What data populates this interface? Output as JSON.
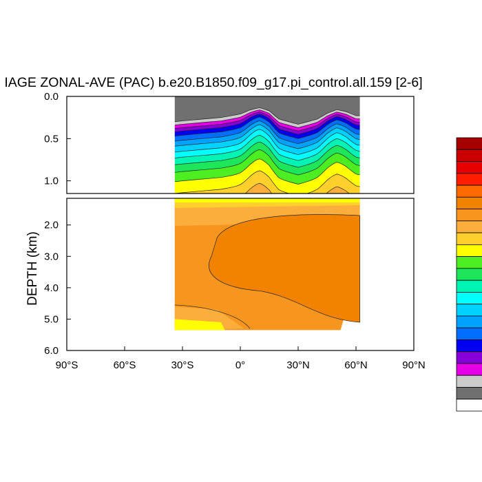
{
  "chart_data": {
    "type": "heatmap",
    "subtype": "filled-contour-section",
    "title": "IAGE ZONAL-AVE (PAC) b.e20.B1850.f09_g17.pi_control.all.159 [2-6]",
    "ylabel": "DEPTH (km)",
    "xlabel": "",
    "x_ticks": [
      "90°S",
      "60°S",
      "30°S",
      "0°",
      "30°N",
      "60°N",
      "90°N"
    ],
    "x_tick_values": [
      -90,
      -60,
      -30,
      0,
      30,
      60,
      90
    ],
    "xlim": [
      -90,
      90
    ],
    "upper_panel": {
      "ylim": [
        0.0,
        1.15
      ],
      "y_ticks": [
        "0.0",
        "0.5",
        "1.0"
      ],
      "y_tick_values": [
        0.0,
        0.5,
        1.0
      ]
    },
    "lower_panel": {
      "ylim": [
        1.15,
        6.0
      ],
      "y_ticks": [
        "2.0",
        "3.0",
        "4.0",
        "5.0",
        "6.0"
      ],
      "y_tick_values": [
        2.0,
        3.0,
        4.0,
        5.0,
        6.0
      ]
    },
    "data_extent": {
      "lat_min": -34,
      "lat_max": 62,
      "max_depth_km": 5.35
    },
    "colorbar_colors": [
      "#a50000",
      "#c80000",
      "#e60000",
      "#ff1e00",
      "#ff6a00",
      "#f28300",
      "#f7961e",
      "#fcae3c",
      "#ffd02c",
      "#ffff00",
      "#4cee22",
      "#1ee65a",
      "#00f5b4",
      "#00ffff",
      "#00d2ff",
      "#00a2ff",
      "#006eff",
      "#0000f0",
      "#8600d8",
      "#e600e6",
      "#cccccc",
      "#707070",
      "#ffffff"
    ],
    "shallow_profile": {
      "lat": [
        -34,
        -30,
        -20,
        -10,
        0,
        5,
        10,
        15,
        20,
        30,
        40,
        45,
        50,
        55,
        60
      ],
      "depth_km": [
        0.25,
        0.24,
        0.22,
        0.2,
        0.16,
        0.12,
        0.1,
        0.13,
        0.22,
        0.28,
        0.22,
        0.16,
        0.12,
        0.14,
        0.18
      ]
    },
    "layer_colors_top_down": [
      "#707070",
      "#cccccc",
      "#e600e6",
      "#8600d8",
      "#0000f0",
      "#006eff",
      "#00a2ff",
      "#00d2ff",
      "#00ffff",
      "#00f5b4",
      "#1ee65a",
      "#4cee22",
      "#ffff00",
      "#ffd02c",
      "#fcae3c",
      "#f7961e",
      "#f28300"
    ]
  }
}
